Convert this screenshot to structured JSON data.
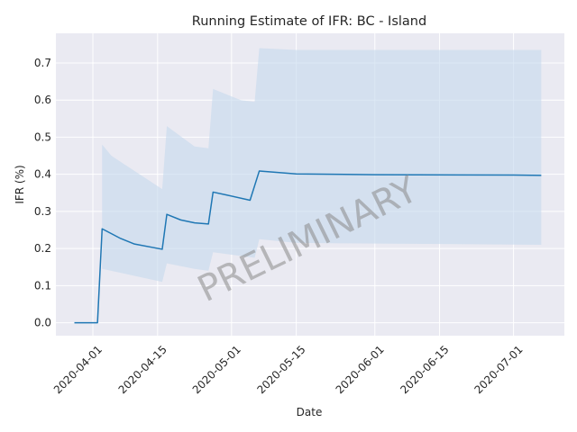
{
  "chart_data": {
    "type": "line",
    "title": "Running Estimate of IFR: BC - Island",
    "xlabel": "Date",
    "ylabel": "IFR (%)",
    "watermark": "PRELIMINARY",
    "grid": true,
    "legend": "none",
    "x_ticks": [
      "2020-04-01",
      "2020-04-15",
      "2020-05-01",
      "2020-05-15",
      "2020-06-01",
      "2020-06-15",
      "2020-07-01"
    ],
    "y_ticks": [
      0.0,
      0.1,
      0.2,
      0.3,
      0.4,
      0.5,
      0.6,
      0.7
    ],
    "xlim": [
      "2020-03-24",
      "2020-07-12"
    ],
    "ylim": [
      -0.035,
      0.78
    ],
    "colors": {
      "line": "#1f77b4",
      "band": "#c5d8ec",
      "plot_bg": "#eaeaf2",
      "grid": "#ffffff"
    },
    "series": [
      {
        "x": [
          "2020-03-28",
          "2020-04-02",
          "2020-04-03",
          "2020-04-07",
          "2020-04-10",
          "2020-04-16",
          "2020-04-17",
          "2020-04-20",
          "2020-04-23",
          "2020-04-26",
          "2020-04-27",
          "2020-04-30",
          "2020-05-05",
          "2020-05-07",
          "2020-05-15",
          "2020-06-01",
          "2020-07-01",
          "2020-07-07"
        ],
        "y": [
          0.0,
          0.0,
          0.253,
          0.227,
          0.212,
          0.198,
          0.292,
          0.277,
          0.269,
          0.266,
          0.352,
          0.344,
          0.33,
          0.409,
          0.401,
          0.399,
          0.398,
          0.397
        ]
      }
    ],
    "band": {
      "x": [
        "2020-04-03",
        "2020-04-05",
        "2020-04-16",
        "2020-04-17",
        "2020-04-23",
        "2020-04-26",
        "2020-04-27",
        "2020-05-03",
        "2020-05-06",
        "2020-05-07",
        "2020-05-15",
        "2020-07-07"
      ],
      "lower": [
        0.145,
        0.14,
        0.11,
        0.16,
        0.145,
        0.14,
        0.19,
        0.18,
        0.175,
        0.225,
        0.215,
        0.21
      ],
      "upper": [
        0.48,
        0.45,
        0.36,
        0.53,
        0.475,
        0.47,
        0.63,
        0.6,
        0.595,
        0.74,
        0.735,
        0.735
      ]
    }
  }
}
